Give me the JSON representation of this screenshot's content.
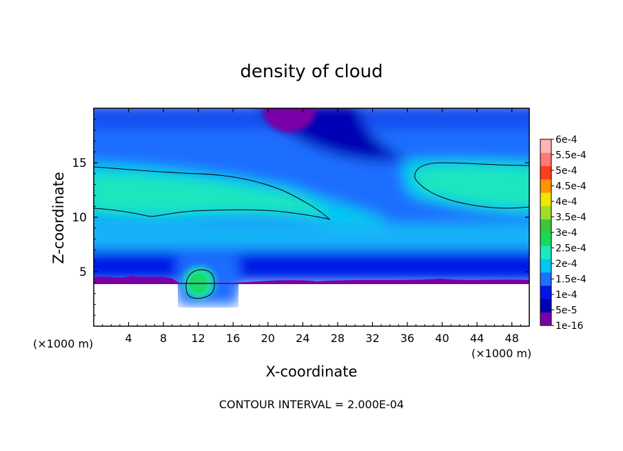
{
  "chart_data": {
    "type": "heatmap",
    "title": "density of cloud",
    "xlabel": "X-coordinate",
    "ylabel": "Z-coordinate",
    "x_unit_left": "(×1000 m)",
    "x_unit_right": "(×1000 m)",
    "footer": "CONTOUR INTERVAL = 2.000E-04",
    "xlim": [
      0,
      50
    ],
    "ylim": [
      0,
      20
    ],
    "x_ticks": [
      4,
      8,
      12,
      16,
      20,
      24,
      28,
      32,
      36,
      40,
      44,
      48
    ],
    "x_tick_labels": [
      "4",
      "8",
      "12",
      "16",
      "20",
      "24",
      "28",
      "32",
      "36",
      "40",
      "44",
      "48"
    ],
    "y_ticks": [
      5,
      10,
      15
    ],
    "y_tick_labels": [
      "5",
      "10",
      "15"
    ],
    "colorbar": {
      "labels": [
        "1e-16",
        "5e-5",
        "1e-4",
        "1.5e-4",
        "2e-4",
        "2.5e-4",
        "3e-4",
        "3.5e-4",
        "4e-4",
        "4.5e-4",
        "5e-4",
        "5.5e-4",
        "6e-4"
      ],
      "levels": [
        1e-16,
        5e-05,
        0.0001,
        0.00015,
        0.0002,
        0.00025,
        0.0003,
        0.00035,
        0.0004,
        0.00045,
        0.0005,
        0.00055,
        0.0006
      ],
      "colors": [
        "#7a00a8",
        "#0000b4",
        "#0014e6",
        "#1e6eff",
        "#00c8f0",
        "#1ee6be",
        "#14dc5a",
        "#3cc83c",
        "#a0dc28",
        "#f0e600",
        "#ff9600",
        "#ff3c1e",
        "#ff7878",
        "#ffb4b4"
      ]
    },
    "field_features": {
      "background_level": 0.00012,
      "cloud_layer": {
        "x_range": [
          0,
          50
        ],
        "z_range": [
          10,
          15
        ],
        "peak": 0.00021
      },
      "cloud_free_dome": {
        "x_center": 23,
        "z_top": 20,
        "value": 0
      },
      "convective_cell": {
        "x_center": 12.5,
        "z_center": 3.6,
        "peak": 0.00024
      },
      "lower_boundary_z": 4
    }
  }
}
